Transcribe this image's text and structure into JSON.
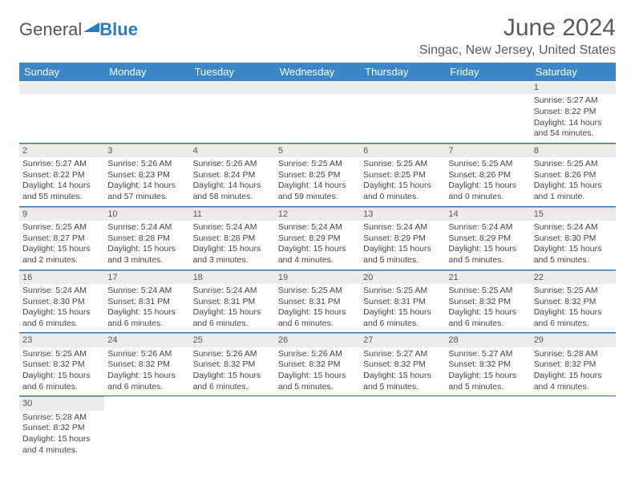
{
  "logo": {
    "general": "General",
    "blue": "Blue"
  },
  "title": "June 2024",
  "location": "Singac, New Jersey, United States",
  "header_bg": "#3b86c6",
  "header_fg": "#ffffff",
  "daynum_bg": "#ececec",
  "rule_color": "#2a6fab",
  "text_color": "#444444",
  "weekdays": [
    "Sunday",
    "Monday",
    "Tuesday",
    "Wednesday",
    "Thursday",
    "Friday",
    "Saturday"
  ],
  "weeks": [
    [
      null,
      null,
      null,
      null,
      null,
      null,
      {
        "n": "1",
        "sr": "Sunrise: 5:27 AM",
        "ss": "Sunset: 8:22 PM",
        "dl": "Daylight: 14 hours and 54 minutes."
      }
    ],
    [
      {
        "n": "2",
        "sr": "Sunrise: 5:27 AM",
        "ss": "Sunset: 8:22 PM",
        "dl": "Daylight: 14 hours and 55 minutes."
      },
      {
        "n": "3",
        "sr": "Sunrise: 5:26 AM",
        "ss": "Sunset: 8:23 PM",
        "dl": "Daylight: 14 hours and 57 minutes."
      },
      {
        "n": "4",
        "sr": "Sunrise: 5:26 AM",
        "ss": "Sunset: 8:24 PM",
        "dl": "Daylight: 14 hours and 58 minutes."
      },
      {
        "n": "5",
        "sr": "Sunrise: 5:25 AM",
        "ss": "Sunset: 8:25 PM",
        "dl": "Daylight: 14 hours and 59 minutes."
      },
      {
        "n": "6",
        "sr": "Sunrise: 5:25 AM",
        "ss": "Sunset: 8:25 PM",
        "dl": "Daylight: 15 hours and 0 minutes."
      },
      {
        "n": "7",
        "sr": "Sunrise: 5:25 AM",
        "ss": "Sunset: 8:26 PM",
        "dl": "Daylight: 15 hours and 0 minutes."
      },
      {
        "n": "8",
        "sr": "Sunrise: 5:25 AM",
        "ss": "Sunset: 8:26 PM",
        "dl": "Daylight: 15 hours and 1 minute."
      }
    ],
    [
      {
        "n": "9",
        "sr": "Sunrise: 5:25 AM",
        "ss": "Sunset: 8:27 PM",
        "dl": "Daylight: 15 hours and 2 minutes."
      },
      {
        "n": "10",
        "sr": "Sunrise: 5:24 AM",
        "ss": "Sunset: 8:28 PM",
        "dl": "Daylight: 15 hours and 3 minutes."
      },
      {
        "n": "11",
        "sr": "Sunrise: 5:24 AM",
        "ss": "Sunset: 8:28 PM",
        "dl": "Daylight: 15 hours and 3 minutes."
      },
      {
        "n": "12",
        "sr": "Sunrise: 5:24 AM",
        "ss": "Sunset: 8:29 PM",
        "dl": "Daylight: 15 hours and 4 minutes."
      },
      {
        "n": "13",
        "sr": "Sunrise: 5:24 AM",
        "ss": "Sunset: 8:29 PM",
        "dl": "Daylight: 15 hours and 5 minutes."
      },
      {
        "n": "14",
        "sr": "Sunrise: 5:24 AM",
        "ss": "Sunset: 8:29 PM",
        "dl": "Daylight: 15 hours and 5 minutes."
      },
      {
        "n": "15",
        "sr": "Sunrise: 5:24 AM",
        "ss": "Sunset: 8:30 PM",
        "dl": "Daylight: 15 hours and 5 minutes."
      }
    ],
    [
      {
        "n": "16",
        "sr": "Sunrise: 5:24 AM",
        "ss": "Sunset: 8:30 PM",
        "dl": "Daylight: 15 hours and 6 minutes."
      },
      {
        "n": "17",
        "sr": "Sunrise: 5:24 AM",
        "ss": "Sunset: 8:31 PM",
        "dl": "Daylight: 15 hours and 6 minutes."
      },
      {
        "n": "18",
        "sr": "Sunrise: 5:24 AM",
        "ss": "Sunset: 8:31 PM",
        "dl": "Daylight: 15 hours and 6 minutes."
      },
      {
        "n": "19",
        "sr": "Sunrise: 5:25 AM",
        "ss": "Sunset: 8:31 PM",
        "dl": "Daylight: 15 hours and 6 minutes."
      },
      {
        "n": "20",
        "sr": "Sunrise: 5:25 AM",
        "ss": "Sunset: 8:31 PM",
        "dl": "Daylight: 15 hours and 6 minutes."
      },
      {
        "n": "21",
        "sr": "Sunrise: 5:25 AM",
        "ss": "Sunset: 8:32 PM",
        "dl": "Daylight: 15 hours and 6 minutes."
      },
      {
        "n": "22",
        "sr": "Sunrise: 5:25 AM",
        "ss": "Sunset: 8:32 PM",
        "dl": "Daylight: 15 hours and 6 minutes."
      }
    ],
    [
      {
        "n": "23",
        "sr": "Sunrise: 5:25 AM",
        "ss": "Sunset: 8:32 PM",
        "dl": "Daylight: 15 hours and 6 minutes."
      },
      {
        "n": "24",
        "sr": "Sunrise: 5:26 AM",
        "ss": "Sunset: 8:32 PM",
        "dl": "Daylight: 15 hours and 6 minutes."
      },
      {
        "n": "25",
        "sr": "Sunrise: 5:26 AM",
        "ss": "Sunset: 8:32 PM",
        "dl": "Daylight: 15 hours and 6 minutes."
      },
      {
        "n": "26",
        "sr": "Sunrise: 5:26 AM",
        "ss": "Sunset: 8:32 PM",
        "dl": "Daylight: 15 hours and 5 minutes."
      },
      {
        "n": "27",
        "sr": "Sunrise: 5:27 AM",
        "ss": "Sunset: 8:32 PM",
        "dl": "Daylight: 15 hours and 5 minutes."
      },
      {
        "n": "28",
        "sr": "Sunrise: 5:27 AM",
        "ss": "Sunset: 8:32 PM",
        "dl": "Daylight: 15 hours and 5 minutes."
      },
      {
        "n": "29",
        "sr": "Sunrise: 5:28 AM",
        "ss": "Sunset: 8:32 PM",
        "dl": "Daylight: 15 hours and 4 minutes."
      }
    ],
    [
      {
        "n": "30",
        "sr": "Sunrise: 5:28 AM",
        "ss": "Sunset: 8:32 PM",
        "dl": "Daylight: 15 hours and 4 minutes."
      },
      null,
      null,
      null,
      null,
      null,
      null
    ]
  ]
}
